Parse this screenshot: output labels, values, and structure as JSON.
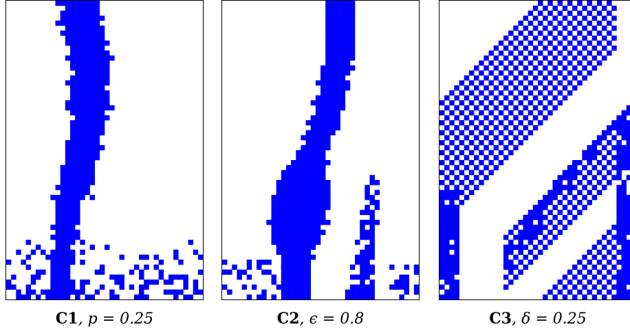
{
  "panels": [
    {
      "id": "C1",
      "caption_label": "C1",
      "caption_param": ", p = 0.25",
      "color": "#0000ff",
      "grid_cols": 40,
      "grid_rows": 60,
      "pattern": "central wandering solid band with noisy blocks at bottom"
    },
    {
      "id": "C2",
      "caption_label": "C2",
      "caption_param": ", ϵ = 0.8",
      "color": "#0000ff",
      "grid_cols": 40,
      "grid_rows": 60,
      "pattern": "central band widening near lower middle, side strands at bottom"
    },
    {
      "id": "C3",
      "caption_label": "C3",
      "caption_param": ", δ = 0.25",
      "color": "#0000ff",
      "grid_cols": 40,
      "grid_rows": 60,
      "pattern": "diagonal checkerboard stripes"
    }
  ]
}
